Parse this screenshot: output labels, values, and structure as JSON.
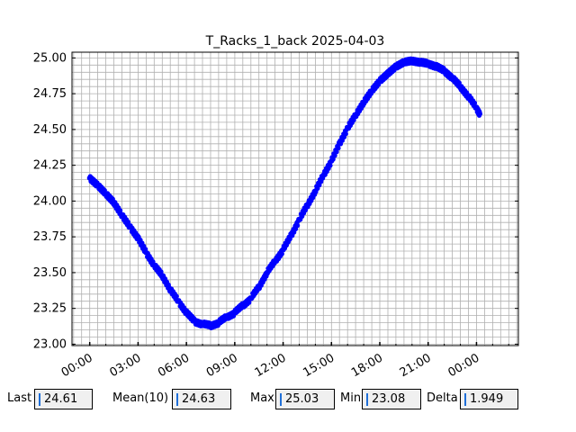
{
  "chart_data": {
    "type": "scatter",
    "title": "T_Racks_1_back 2025-04-03",
    "xlabel": "",
    "ylabel": "",
    "x_ticks": [
      "00:00",
      "03:00",
      "06:00",
      "09:00",
      "12:00",
      "15:00",
      "18:00",
      "21:00",
      "00:00"
    ],
    "x_range_hours": [
      -1.1,
      26.6
    ],
    "ylim": [
      22.99,
      25.04
    ],
    "y_ticks": [
      "23.00",
      "23.25",
      "23.50",
      "23.75",
      "24.00",
      "24.25",
      "24.50",
      "24.75",
      "25.00"
    ],
    "grid": true,
    "marker_color": "#0000ff",
    "series": [
      {
        "points": [
          [
            0.0,
            24.16
          ],
          [
            0.5,
            24.11
          ],
          [
            1.0,
            24.05
          ],
          [
            1.5,
            23.99
          ],
          [
            2.0,
            23.9
          ],
          [
            2.5,
            23.82
          ],
          [
            3.0,
            23.74
          ],
          [
            3.5,
            23.64
          ],
          [
            4.0,
            23.55
          ],
          [
            4.5,
            23.48
          ],
          [
            5.0,
            23.38
          ],
          [
            5.5,
            23.3
          ],
          [
            6.0,
            23.22
          ],
          [
            6.5,
            23.16
          ],
          [
            7.0,
            23.14
          ],
          [
            7.5,
            23.13
          ],
          [
            8.0,
            23.15
          ],
          [
            8.5,
            23.19
          ],
          [
            9.0,
            23.22
          ],
          [
            9.5,
            23.27
          ],
          [
            10.0,
            23.32
          ],
          [
            10.5,
            23.4
          ],
          [
            11.0,
            23.5
          ],
          [
            11.5,
            23.58
          ],
          [
            12.0,
            23.66
          ],
          [
            12.5,
            23.76
          ],
          [
            13.0,
            23.87
          ],
          [
            13.5,
            23.97
          ],
          [
            14.0,
            24.07
          ],
          [
            14.5,
            24.18
          ],
          [
            15.0,
            24.28
          ],
          [
            15.5,
            24.4
          ],
          [
            16.0,
            24.51
          ],
          [
            16.5,
            24.6
          ],
          [
            17.0,
            24.69
          ],
          [
            17.5,
            24.77
          ],
          [
            18.0,
            24.84
          ],
          [
            18.5,
            24.89
          ],
          [
            19.0,
            24.94
          ],
          [
            19.5,
            24.97
          ],
          [
            20.0,
            24.98
          ],
          [
            20.5,
            24.97
          ],
          [
            21.0,
            24.96
          ],
          [
            21.5,
            24.94
          ],
          [
            22.0,
            24.91
          ],
          [
            22.5,
            24.86
          ],
          [
            23.0,
            24.8
          ],
          [
            23.5,
            24.73
          ],
          [
            24.0,
            24.65
          ],
          [
            24.2,
            24.61
          ]
        ]
      }
    ]
  },
  "stats": {
    "last_label": "Last",
    "last_value": "24.61",
    "mean_label": "Mean(10)",
    "mean_value": "24.63",
    "max_label": "Max",
    "max_value": "25.03",
    "min_label": "Min",
    "min_value": "23.08",
    "delta_label": "Delta",
    "delta_value": "1.949"
  }
}
